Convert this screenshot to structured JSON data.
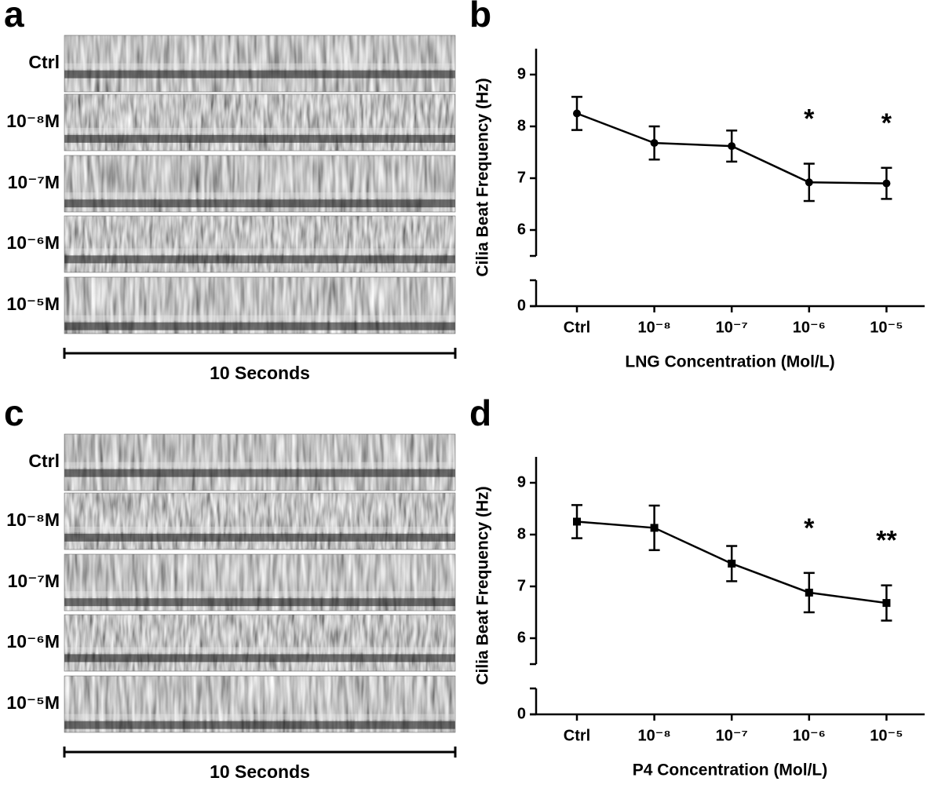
{
  "panel_labels": [
    "a",
    "b",
    "c",
    "d"
  ],
  "kymographs": [
    {
      "rows": [
        "Ctrl",
        "10⁻⁸M",
        "10⁻⁷M",
        "10⁻⁶M",
        "10⁻⁵M"
      ],
      "scale_label": "10 Seconds"
    },
    {
      "rows": [
        "Ctrl",
        "10⁻⁸M",
        "10⁻⁷M",
        "10⁻⁶M",
        "10⁻⁵M"
      ],
      "scale_label": "10 Seconds"
    }
  ],
  "chart_data": [
    {
      "type": "line",
      "y_label": "Cilia Beat Frequency (Hz)",
      "x_label": "LNG Concentration (Mol/L)",
      "categories": [
        "Ctrl",
        "10⁻⁸",
        "10⁻⁷",
        "10⁻⁶",
        "10⁻⁵"
      ],
      "values": [
        8.25,
        7.68,
        7.62,
        6.92,
        6.9
      ],
      "errors": [
        0.32,
        0.32,
        0.3,
        0.36,
        0.3
      ],
      "significance": [
        null,
        null,
        null,
        "*",
        "*"
      ],
      "marker": "circle",
      "color": "#000000",
      "ylim": [
        0,
        9.5
      ],
      "yticks": [
        0,
        6,
        7,
        8,
        9
      ],
      "y_break": [
        0.5,
        5.5
      ]
    },
    {
      "type": "line",
      "y_label": "Cilia Beat Frequency (Hz)",
      "x_label": "P4 Concentration (Mol/L)",
      "categories": [
        "Ctrl",
        "10⁻⁸",
        "10⁻⁷",
        "10⁻⁶",
        "10⁻⁵"
      ],
      "values": [
        8.25,
        8.13,
        7.44,
        6.88,
        6.68
      ],
      "errors": [
        0.32,
        0.43,
        0.34,
        0.38,
        0.34
      ],
      "significance": [
        null,
        null,
        null,
        "*",
        "**"
      ],
      "marker": "square",
      "color": "#000000",
      "ylim": [
        0,
        9.5
      ],
      "yticks": [
        0,
        6,
        7,
        8,
        9
      ],
      "y_break": [
        0.5,
        5.5
      ]
    }
  ]
}
